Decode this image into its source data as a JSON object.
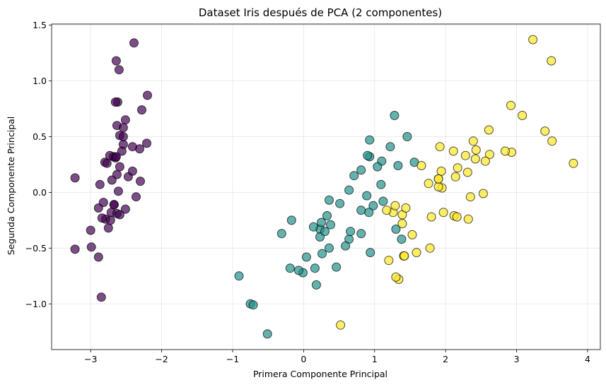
{
  "chart_data": {
    "type": "scatter",
    "title": "Dataset Iris después de PCA (2 componentes)",
    "xlabel": "Primera Componente Principal",
    "ylabel": "Segunda Componente Principal",
    "xlim": [
      -3.55,
      4.18
    ],
    "ylim": [
      -1.41,
      1.51
    ],
    "xticks": [
      -3,
      -2,
      -1,
      0,
      1,
      2,
      3,
      4
    ],
    "xtick_labels": [
      "−3",
      "−2",
      "−1",
      "0",
      "1",
      "2",
      "3",
      "4"
    ],
    "yticks": [
      -1.0,
      -0.5,
      0.0,
      0.5,
      1.0,
      1.5
    ],
    "ytick_labels": [
      "−1.0",
      "−0.5",
      "0.0",
      "0.5",
      "1.0",
      "1.5"
    ],
    "grid": true,
    "series": [
      {
        "color": "#440154",
        "points": [
          [
            -2.68,
            0.32
          ],
          [
            -2.71,
            -0.18
          ],
          [
            -2.89,
            -0.14
          ],
          [
            -2.75,
            -0.32
          ],
          [
            -2.73,
            0.33
          ],
          [
            -2.28,
            0.74
          ],
          [
            -2.82,
            -0.09
          ],
          [
            -2.63,
            0.16
          ],
          [
            -2.89,
            -0.58
          ],
          [
            -2.67,
            -0.11
          ],
          [
            -2.51,
            0.65
          ],
          [
            -2.61,
            0.01
          ],
          [
            -2.79,
            -0.24
          ],
          [
            -3.22,
            -0.51
          ],
          [
            -2.64,
            1.18
          ],
          [
            -2.39,
            1.34
          ],
          [
            -2.62,
            0.81
          ],
          [
            -2.65,
            0.31
          ],
          [
            -2.2,
            0.87
          ],
          [
            -2.59,
            0.51
          ],
          [
            -2.31,
            0.39
          ],
          [
            -2.54,
            0.43
          ],
          [
            -3.22,
            0.13
          ],
          [
            -2.3,
            0.1
          ],
          [
            -2.36,
            -0.04
          ],
          [
            -2.51,
            -0.15
          ],
          [
            -2.47,
            0.14
          ],
          [
            -2.56,
            0.37
          ],
          [
            -2.64,
            0.32
          ],
          [
            -2.63,
            -0.19
          ],
          [
            -2.59,
            -0.2
          ],
          [
            -2.41,
            0.41
          ],
          [
            -2.65,
            0.81
          ],
          [
            -2.6,
            1.1
          ],
          [
            -2.67,
            -0.11
          ],
          [
            -2.87,
            0.07
          ],
          [
            -2.63,
            0.6
          ],
          [
            -2.8,
            0.27
          ],
          [
            -2.99,
            -0.49
          ],
          [
            -2.59,
            0.23
          ],
          [
            -2.77,
            0.26
          ],
          [
            -2.85,
            -0.94
          ],
          [
            -3.0,
            -0.34
          ],
          [
            -2.41,
            0.19
          ],
          [
            -2.21,
            0.44
          ],
          [
            -2.72,
            -0.25
          ],
          [
            -2.54,
            0.5
          ],
          [
            -2.84,
            -0.23
          ],
          [
            -2.54,
            0.58
          ],
          [
            -2.7,
            0.11
          ]
        ]
      },
      {
        "color": "#21918c",
        "points": [
          [
            1.28,
            0.69
          ],
          [
            0.93,
            0.32
          ],
          [
            1.46,
            0.5
          ],
          [
            0.18,
            -0.83
          ],
          [
            1.09,
            0.07
          ],
          [
            0.64,
            -0.42
          ],
          [
            1.1,
            0.28
          ],
          [
            -0.75,
            -1.0
          ],
          [
            1.04,
            0.23
          ],
          [
            -0.01,
            -0.72
          ],
          [
            -0.51,
            -1.27
          ],
          [
            0.51,
            -0.1
          ],
          [
            0.26,
            -0.55
          ],
          [
            0.98,
            -0.12
          ],
          [
            -0.17,
            -0.25
          ],
          [
            0.93,
            0.47
          ],
          [
            0.66,
            -0.35
          ],
          [
            0.23,
            -0.33
          ],
          [
            0.94,
            -0.54
          ],
          [
            0.04,
            -0.58
          ],
          [
            1.12,
            -0.08
          ],
          [
            0.36,
            -0.07
          ],
          [
            1.3,
            -0.33
          ],
          [
            0.92,
            -0.18
          ],
          [
            0.71,
            0.15
          ],
          [
            0.9,
            0.33
          ],
          [
            1.33,
            0.24
          ],
          [
            1.56,
            0.27
          ],
          [
            0.81,
            -0.16
          ],
          [
            -0.31,
            -0.37
          ],
          [
            -0.07,
            -0.7
          ],
          [
            -0.19,
            -0.68
          ],
          [
            0.14,
            -0.31
          ],
          [
            1.38,
            -0.42
          ],
          [
            0.59,
            -0.48
          ],
          [
            0.81,
            0.2
          ],
          [
            1.22,
            0.41
          ],
          [
            0.81,
            -0.37
          ],
          [
            0.25,
            -0.27
          ],
          [
            0.16,
            -0.68
          ],
          [
            0.46,
            -0.67
          ],
          [
            0.89,
            -0.03
          ],
          [
            0.23,
            -0.4
          ],
          [
            -0.71,
            -1.01
          ],
          [
            0.36,
            -0.5
          ],
          [
            0.33,
            -0.21
          ],
          [
            0.38,
            -0.29
          ],
          [
            0.64,
            0.02
          ],
          [
            -0.91,
            -0.75
          ],
          [
            0.3,
            -0.35
          ]
        ]
      },
      {
        "color": "#fde725",
        "points": [
          [
            2.53,
            -0.01
          ],
          [
            1.41,
            -0.57
          ],
          [
            2.62,
            0.34
          ],
          [
            1.97,
            -0.18
          ],
          [
            2.35,
            -0.04
          ],
          [
            3.4,
            0.55
          ],
          [
            0.52,
            -1.19
          ],
          [
            2.93,
            0.36
          ],
          [
            2.32,
            -0.24
          ],
          [
            2.92,
            0.78
          ],
          [
            1.66,
            0.24
          ],
          [
            1.8,
            -0.22
          ],
          [
            2.17,
            0.22
          ],
          [
            1.34,
            -0.78
          ],
          [
            1.59,
            -0.54
          ],
          [
            1.9,
            0.12
          ],
          [
            1.95,
            0.04
          ],
          [
            3.49,
            1.18
          ],
          [
            3.8,
            0.26
          ],
          [
            1.3,
            -0.76
          ],
          [
            2.43,
            0.38
          ],
          [
            1.2,
            -0.61
          ],
          [
            3.5,
            0.46
          ],
          [
            1.39,
            -0.2
          ],
          [
            2.28,
            0.33
          ],
          [
            2.61,
            0.56
          ],
          [
            1.26,
            -0.18
          ],
          [
            1.29,
            -0.12
          ],
          [
            2.12,
            -0.21
          ],
          [
            2.39,
            0.46
          ],
          [
            2.84,
            0.37
          ],
          [
            3.23,
            1.37
          ],
          [
            2.16,
            -0.22
          ],
          [
            1.44,
            -0.14
          ],
          [
            1.78,
            -0.5
          ],
          [
            3.08,
            0.69
          ],
          [
            2.14,
            0.14
          ],
          [
            1.9,
            0.05
          ],
          [
            1.17,
            -0.16
          ],
          [
            2.11,
            0.37
          ],
          [
            2.31,
            0.18
          ],
          [
            1.92,
            0.41
          ],
          [
            1.42,
            -0.57
          ],
          [
            2.56,
            0.28
          ],
          [
            2.42,
            0.3
          ],
          [
            1.94,
            0.19
          ],
          [
            1.53,
            -0.38
          ],
          [
            1.76,
            0.08
          ],
          [
            1.9,
            0.12
          ],
          [
            1.39,
            -0.28
          ]
        ]
      }
    ]
  }
}
